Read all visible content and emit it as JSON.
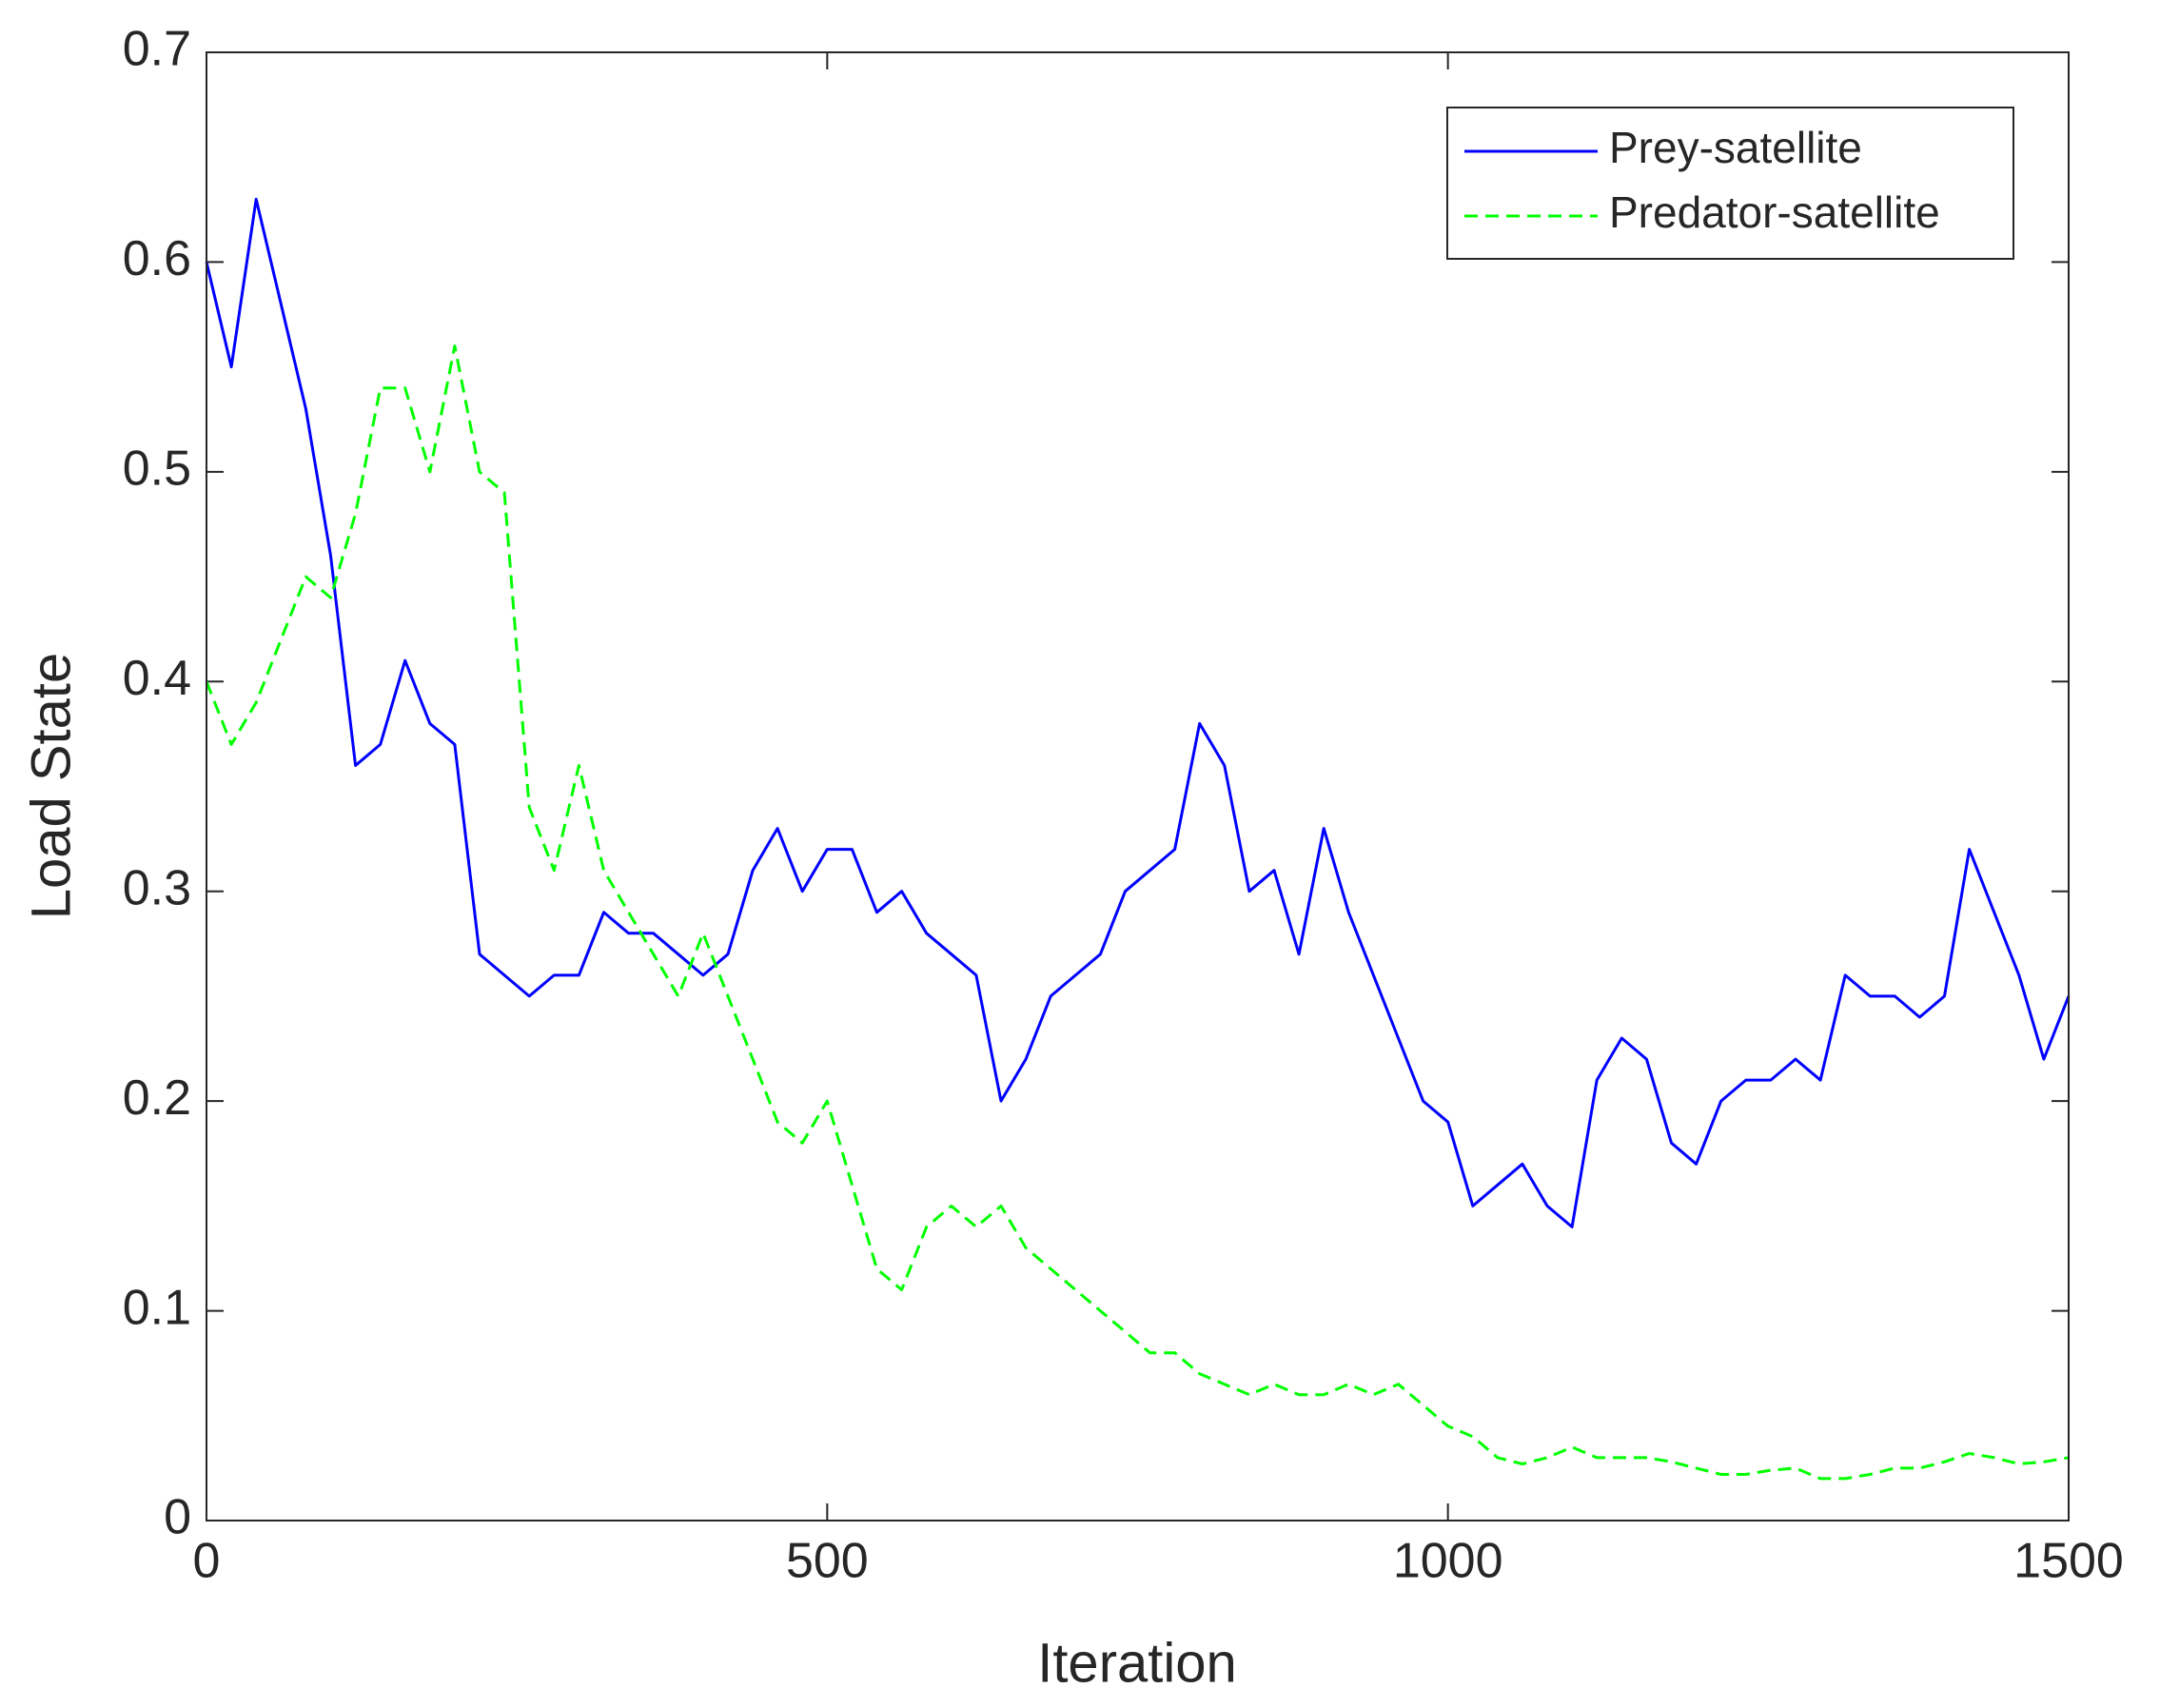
{
  "chart_data": {
    "type": "line",
    "xlabel": "Iteration",
    "ylabel": "Load State",
    "x": [
      0,
      20,
      40,
      60,
      80,
      100,
      120,
      140,
      160,
      180,
      200,
      220,
      240,
      260,
      280,
      300,
      320,
      340,
      360,
      380,
      400,
      420,
      440,
      460,
      480,
      500,
      520,
      540,
      560,
      580,
      600,
      620,
      640,
      660,
      680,
      700,
      720,
      740,
      760,
      780,
      800,
      820,
      840,
      860,
      880,
      900,
      920,
      940,
      960,
      980,
      1000,
      1020,
      1040,
      1060,
      1080,
      1100,
      1120,
      1140,
      1160,
      1180,
      1200,
      1220,
      1240,
      1260,
      1280,
      1300,
      1320,
      1340,
      1360,
      1380,
      1400,
      1420,
      1440,
      1460,
      1480,
      1500
    ],
    "series": [
      {
        "name": "Prey-satellite",
        "color": "#0000ff",
        "dash": false,
        "values": [
          0.6,
          0.55,
          0.63,
          0.58,
          0.53,
          0.46,
          0.36,
          0.37,
          0.41,
          0.38,
          0.37,
          0.27,
          0.26,
          0.25,
          0.26,
          0.26,
          0.29,
          0.28,
          0.28,
          0.27,
          0.26,
          0.27,
          0.31,
          0.33,
          0.3,
          0.32,
          0.32,
          0.29,
          0.3,
          0.28,
          0.27,
          0.26,
          0.2,
          0.22,
          0.25,
          0.26,
          0.27,
          0.3,
          0.31,
          0.32,
          0.38,
          0.36,
          0.3,
          0.31,
          0.27,
          0.33,
          0.29,
          0.26,
          0.23,
          0.2,
          0.19,
          0.15,
          0.16,
          0.17,
          0.15,
          0.14,
          0.21,
          0.23,
          0.22,
          0.18,
          0.17,
          0.2,
          0.21,
          0.21,
          0.22,
          0.21,
          0.26,
          0.25,
          0.25,
          0.24,
          0.25,
          0.32,
          0.29,
          0.26,
          0.22,
          0.25
        ]
      },
      {
        "name": "Predator-satellite",
        "color": "#00ff00",
        "dash": true,
        "values": [
          0.4,
          0.37,
          0.39,
          0.42,
          0.45,
          0.44,
          0.48,
          0.54,
          0.54,
          0.5,
          0.56,
          0.5,
          0.49,
          0.34,
          0.31,
          0.36,
          0.31,
          0.29,
          0.27,
          0.25,
          0.28,
          0.25,
          0.22,
          0.19,
          0.18,
          0.2,
          0.16,
          0.12,
          0.11,
          0.14,
          0.15,
          0.14,
          0.15,
          0.13,
          0.12,
          0.11,
          0.1,
          0.09,
          0.08,
          0.08,
          0.07,
          0.065,
          0.06,
          0.065,
          0.06,
          0.06,
          0.065,
          0.06,
          0.065,
          0.055,
          0.045,
          0.04,
          0.03,
          0.027,
          0.03,
          0.035,
          0.03,
          0.03,
          0.03,
          0.028,
          0.025,
          0.022,
          0.022,
          0.024,
          0.025,
          0.02,
          0.02,
          0.022,
          0.025,
          0.025,
          0.028,
          0.032,
          0.03,
          0.027,
          0.028,
          0.03
        ]
      }
    ],
    "xlim": [
      0,
      1500
    ],
    "xticks": [
      0,
      500,
      1000,
      1500
    ],
    "ylim": [
      0,
      0.7
    ],
    "yticks": [
      0,
      0.1,
      0.2,
      0.3,
      0.4,
      0.5,
      0.6,
      0.7
    ],
    "grid": false,
    "legend": "upper right"
  }
}
